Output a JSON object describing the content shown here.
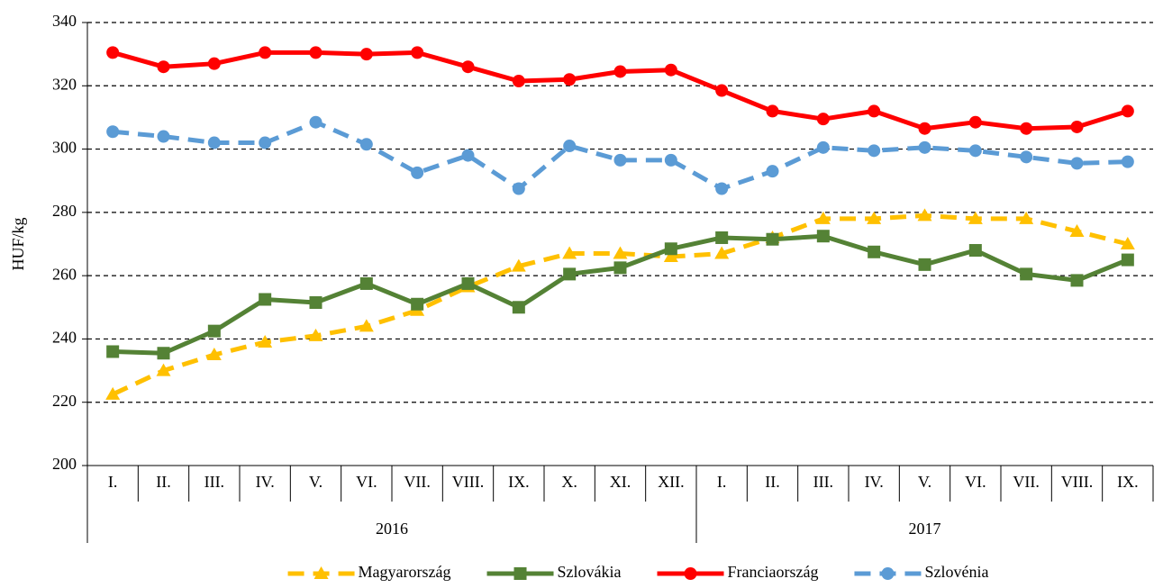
{
  "chart_data": {
    "type": "line",
    "y_label": "HUF/kg",
    "category_groups": [
      {
        "label": "2016",
        "categories": [
          "I.",
          "II.",
          "III.",
          "IV.",
          "V.",
          "VI.",
          "VII.",
          "VIII.",
          "IX.",
          "X.",
          "XI.",
          "XII."
        ]
      },
      {
        "label": "2017",
        "categories": [
          "I.",
          "II.",
          "III.",
          "IV.",
          "V.",
          "VI.",
          "VII.",
          "VIII.",
          "IX."
        ]
      }
    ],
    "ylim": [
      200,
      340
    ],
    "yticks": [
      200,
      220,
      240,
      260,
      280,
      300,
      320,
      340
    ],
    "grid": true,
    "legend": "bottom",
    "series": [
      {
        "name": "Magyarország",
        "color": "#FFC000",
        "style": "dashed",
        "marker": "triangle",
        "values": [
          222.5,
          230,
          235,
          239,
          241,
          244,
          249,
          256.5,
          263,
          267,
          267,
          266,
          267,
          272,
          278,
          278,
          279,
          278,
          278,
          274,
          270
        ]
      },
      {
        "name": "Szlovákia",
        "color": "#548235",
        "style": "solid",
        "marker": "square",
        "values": [
          236,
          235.5,
          242.5,
          252.5,
          251.5,
          257.5,
          251,
          257.5,
          250,
          260.5,
          262.5,
          268.5,
          272,
          271.5,
          272.5,
          267.5,
          263.5,
          268,
          260.5,
          258.5,
          265
        ]
      },
      {
        "name": "Franciaország",
        "color": "#FF0000",
        "style": "solid",
        "marker": "circle",
        "values": [
          330.5,
          326,
          327,
          330.5,
          330.5,
          330,
          330.5,
          326,
          321.5,
          322,
          324.5,
          325,
          318.5,
          312,
          309.5,
          312,
          306.5,
          308.5,
          306.5,
          307,
          312
        ]
      },
      {
        "name": "Szlovénia",
        "color": "#5B9BD5",
        "style": "dashed",
        "marker": "circle",
        "values": [
          305.5,
          304,
          302,
          302,
          308.5,
          301.5,
          292.5,
          298,
          287.5,
          301,
          296.5,
          296.5,
          287.5,
          293,
          300.5,
          299.5,
          300.5,
          299.5,
          297.5,
          295.5,
          296
        ]
      }
    ]
  }
}
